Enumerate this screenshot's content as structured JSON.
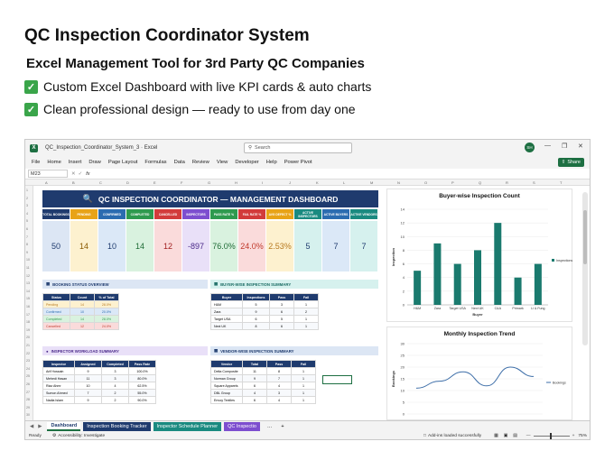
{
  "promo": {
    "title": "QC Inspection Coordinator System",
    "subtitle": "Excel Management Tool for 3rd Party QC Companies",
    "bullets": [
      "Custom Excel Dashboard with live KPI cards & auto charts",
      "Clean professional design — ready to use from day one"
    ]
  },
  "excel": {
    "file_name": "QC_Inspection_Coordinator_System_3  ·  Excel",
    "search_placeholder": "Search",
    "avatar_initials": "SH",
    "menu": [
      "File",
      "Home",
      "Insert",
      "Draw",
      "Page Layout",
      "Formulas",
      "Data",
      "Review",
      "View",
      "Developer",
      "Help",
      "Power Pivot"
    ],
    "share_label": "Share",
    "name_box": "M23",
    "fx_label": "fx",
    "columns": [
      "A",
      "B",
      "C",
      "D",
      "E",
      "F",
      "G",
      "H",
      "I",
      "J",
      "K",
      "L",
      "M",
      "N",
      "O",
      "P",
      "Q",
      "R",
      "S",
      "T"
    ],
    "rows": [
      "1",
      "2",
      "3",
      "4",
      "5",
      "6",
      "7",
      "8",
      "9",
      "10",
      "11",
      "12",
      "13",
      "14",
      "15",
      "16",
      "17",
      "18",
      "19",
      "20",
      "21",
      "22",
      "23",
      "24",
      "25",
      "26",
      "27",
      "28",
      "29",
      "30"
    ]
  },
  "dashboard": {
    "banner": "QC INSPECTION COORDINATOR  —  MANAGEMENT DASHBOARD",
    "kpis": [
      {
        "label": "TOTAL BOOKINGS",
        "value": "50",
        "head": "#1f3b6e",
        "bg": "#dce6f4",
        "color": "#1f3b6e"
      },
      {
        "label": "PENDING",
        "value": "14",
        "head": "#e8a317",
        "bg": "#fdf1cf",
        "color": "#8a5a00"
      },
      {
        "label": "CONFIRMED",
        "value": "10",
        "head": "#2b6cb0",
        "bg": "#dbe8f7",
        "color": "#1f3b6e"
      },
      {
        "label": "COMPLETED",
        "value": "14",
        "head": "#2e9a4e",
        "bg": "#d9f2df",
        "color": "#1e6b35"
      },
      {
        "label": "CANCELLED",
        "value": "12",
        "head": "#d23b3b",
        "bg": "#fadbdb",
        "color": "#a11f1f"
      },
      {
        "label": "INSPECTORS",
        "value": "-897",
        "head": "#7d4ecf",
        "bg": "#e9e0f8",
        "color": "#4b2a8a"
      },
      {
        "label": "PASS RATE %",
        "value": "76.0%",
        "head": "#2e9a4e",
        "bg": "#d9f2df",
        "color": "#1e6b35"
      },
      {
        "label": "FAIL RATE %",
        "value": "24.0%",
        "head": "#d23b3b",
        "bg": "#fadbdb",
        "color": "#c0392b"
      },
      {
        "label": "AVG DEFECT %",
        "value": "2.53%",
        "head": "#e8a317",
        "bg": "#fdf1cf",
        "color": "#b7791f"
      },
      {
        "label": "ACTIVE INSPECTORS",
        "value": "5",
        "head": "#1a8a80",
        "bg": "#d6f1ee",
        "color": "#1f3b6e"
      },
      {
        "label": "ACTIVE BUYERS",
        "value": "7",
        "head": "#2b6cb0",
        "bg": "#dbe8f7",
        "color": "#1f3b6e"
      },
      {
        "label": "ACTIVE VENDORS",
        "value": "7",
        "head": "#1a8a80",
        "bg": "#d6f1ee",
        "color": "#1f3b6e"
      }
    ],
    "booking_status": {
      "title": "BOOKING STATUS OVERVIEW",
      "headers": [
        "Status",
        "Count",
        "% of Total"
      ],
      "rows": [
        [
          "Pending",
          "14",
          "28.0%"
        ],
        [
          "Confirmed",
          "10",
          "20.0%"
        ],
        [
          "Completed",
          "14",
          "28.0%"
        ],
        [
          "Cancelled",
          "12",
          "24.0%"
        ]
      ]
    },
    "buyer_summary": {
      "title": "BUYER-WISE INSPECTION SUMMARY",
      "headers": [
        "Buyer",
        "Inspections",
        "Pass",
        "Fail"
      ],
      "rows": [
        [
          "H&M",
          "5",
          "3",
          "1"
        ],
        [
          "Zara",
          "9",
          "6",
          "2"
        ],
        [
          "Target USA",
          "6",
          "5",
          "1"
        ],
        [
          "Next UK",
          "8",
          "6",
          "1"
        ]
      ]
    },
    "inspector_summary": {
      "title": "INSPECTOR WORKLOAD SUMMARY",
      "headers": [
        "Inspector",
        "Assigned",
        "Completed",
        "Pass Rate"
      ],
      "rows": [
        [
          "Arif Hossain",
          "9",
          "3",
          "100.0%"
        ],
        [
          "Mehedi Hasan",
          "11",
          "3",
          "80.0%"
        ],
        [
          "Riaz Ahmr",
          "10",
          "4",
          "62.5%"
        ],
        [
          "Sumon Ahmed",
          "7",
          "2",
          "55.0%"
        ],
        [
          "Nadia Islam",
          "9",
          "2",
          "90.0%"
        ]
      ]
    },
    "vendor_summary": {
      "title": "VENDOR-WISE INSPECTION SUMMARY",
      "headers": [
        "Vendor",
        "Total",
        "Pass",
        "Fail"
      ],
      "rows": [
        [
          "Delta Composite",
          "11",
          "8",
          "1"
        ],
        [
          "Norman Group",
          "9",
          "7",
          "1"
        ],
        [
          "Square Apparels",
          "6",
          "4",
          "1"
        ],
        [
          "DBL Group",
          "4",
          "3",
          "1"
        ],
        [
          "Envoy Textiles",
          "6",
          "4",
          "1"
        ]
      ]
    }
  },
  "chart_data": [
    {
      "type": "bar",
      "title": "Buyer-wise Inspection Count",
      "categories": [
        "H&M",
        "Zara",
        "Target USA",
        "Next UK",
        "C&A",
        "Primark",
        "Li & Fung"
      ],
      "series": [
        {
          "name": "Inspections",
          "values": [
            5,
            9,
            6,
            8,
            12,
            4,
            6
          ]
        }
      ],
      "xlabel": "Buyer",
      "ylabel": "Inspection",
      "ylim": [
        0,
        14
      ],
      "yticks": [
        0,
        2,
        4,
        6,
        8,
        10,
        12,
        14
      ],
      "color": "#1a7a6e",
      "legend": "right"
    },
    {
      "type": "line",
      "title": "Monthly Inspection Trend",
      "x": [
        1,
        2,
        3,
        4,
        5,
        6
      ],
      "series": [
        {
          "name": "Bookings",
          "values": [
            11,
            14,
            18,
            12,
            20,
            16
          ]
        }
      ],
      "ylabel": "Bookings",
      "ylim": [
        0,
        30
      ],
      "yticks": [
        0,
        5,
        10,
        15,
        20,
        25,
        30
      ],
      "color": "#3d6ea8",
      "legend": "right"
    }
  ],
  "tabs": {
    "items": [
      {
        "label": "Dashboard",
        "bg": "#ffffff",
        "color": "#1f3b6e"
      },
      {
        "label": "Inspection Booking Tracker",
        "bg": "#1f3b6e",
        "color": "#ffffff"
      },
      {
        "label": "Inspector Schedule Planner",
        "bg": "#1a8a80",
        "color": "#ffffff"
      },
      {
        "label": "QC Inspectio",
        "bg": "#7d4ecf",
        "color": "#ffffff"
      }
    ]
  },
  "status": {
    "ready": "Ready",
    "accessibility": "Accessibility: Investigate",
    "addins": "Add-ins loaded successfully",
    "zoom": "75%"
  }
}
